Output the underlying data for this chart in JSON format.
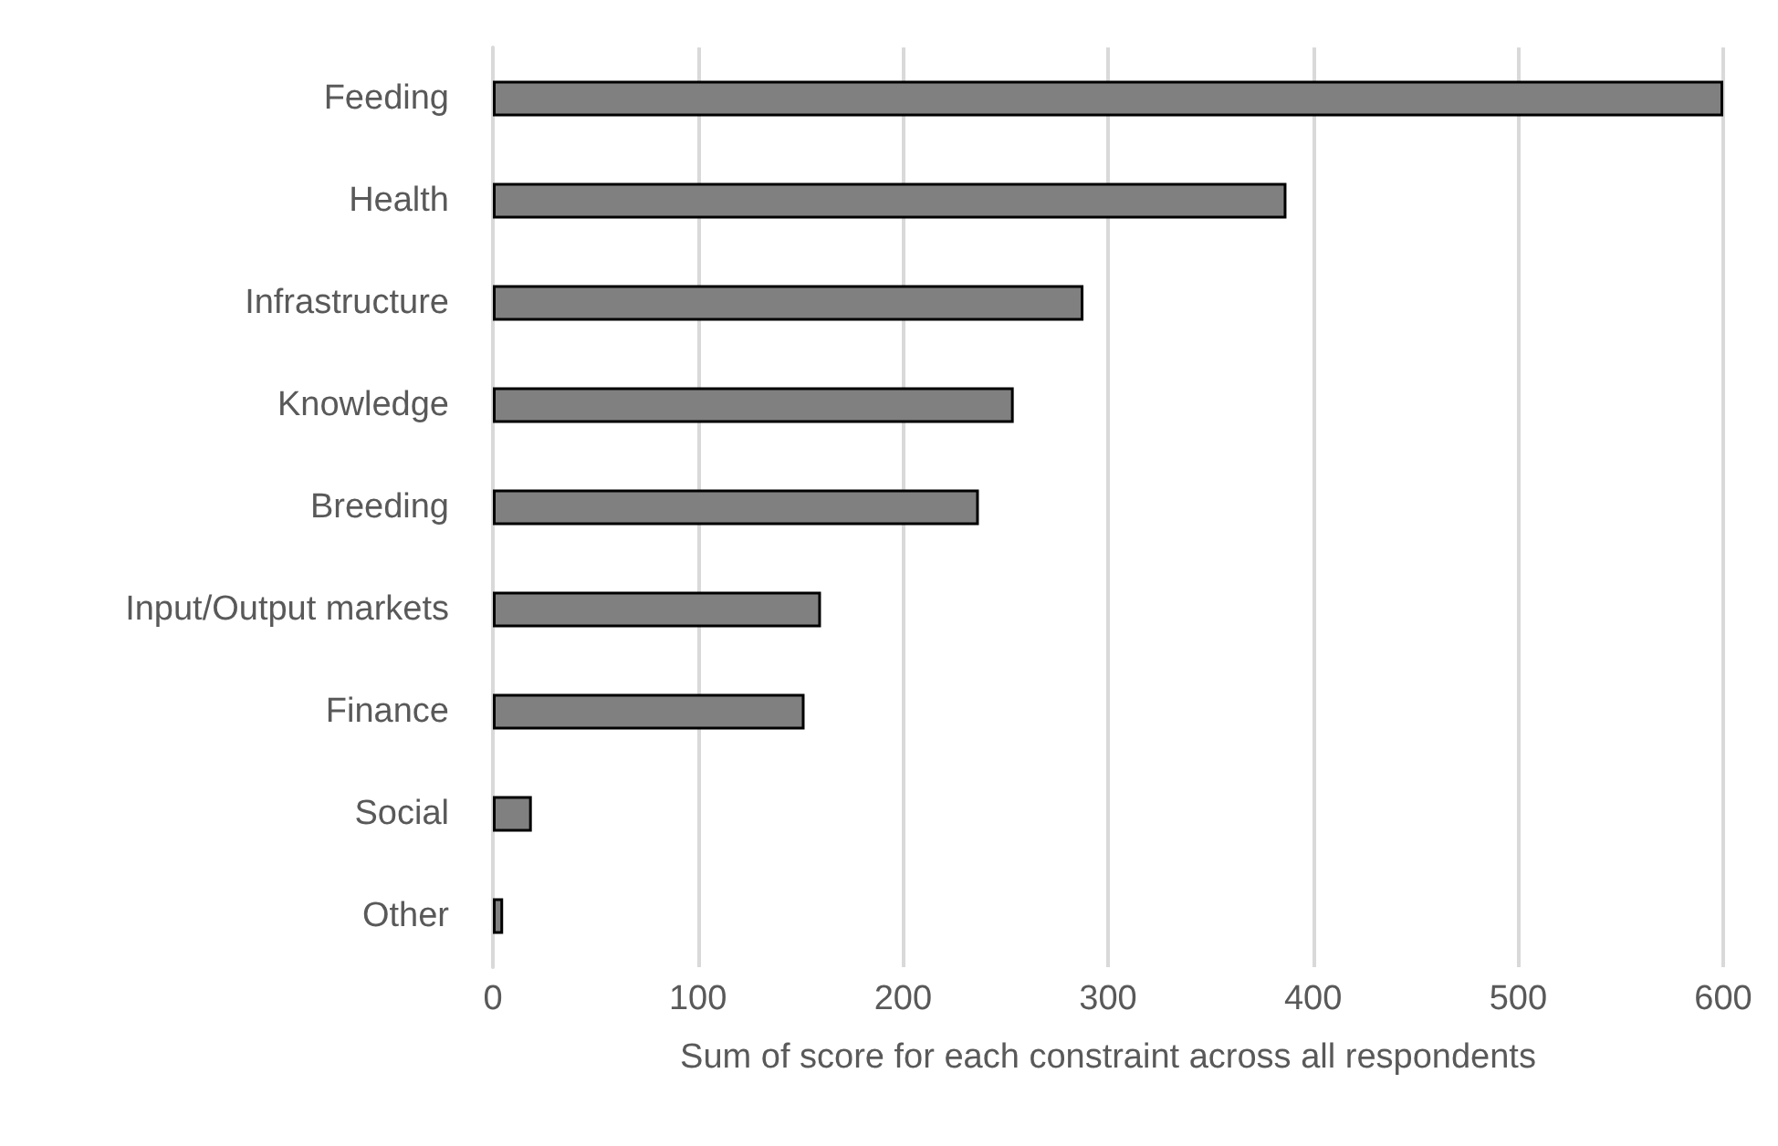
{
  "chart_data": {
    "type": "bar",
    "orientation": "horizontal",
    "xlabel": "Sum of score for each constraint across all respondents",
    "categories": [
      "Feeding",
      "Health",
      "Infrastructure",
      "Knowledge",
      "Breeding",
      "Input/Output markets",
      "Finance",
      "Social",
      "Other"
    ],
    "values": [
      600,
      387,
      288,
      254,
      237,
      160,
      152,
      19,
      5
    ],
    "color": "#808080",
    "xlim": [
      0,
      600
    ],
    "xticks": [
      0,
      100,
      200,
      300,
      400,
      500,
      600
    ],
    "grid": "x"
  }
}
